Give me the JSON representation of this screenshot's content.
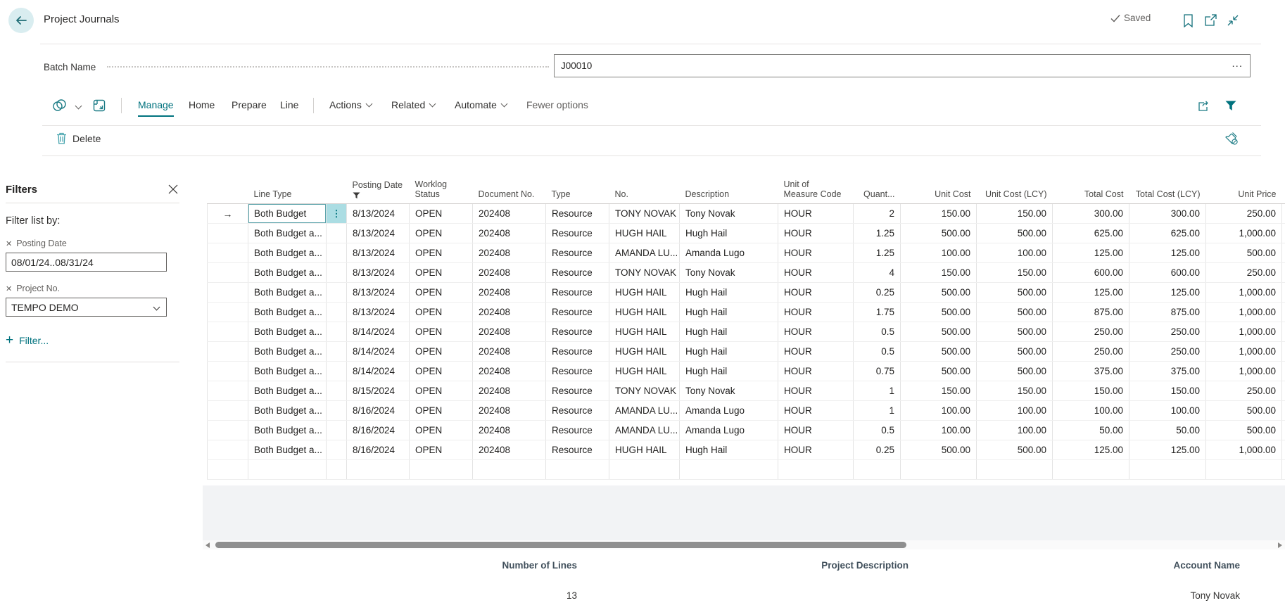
{
  "header": {
    "title": "Project Journals",
    "saved_label": "Saved"
  },
  "batch": {
    "label": "Batch Name",
    "value": "J00010",
    "ellipsis": "..."
  },
  "ribbon": {
    "menu": [
      {
        "label": "Manage",
        "active": true
      },
      {
        "label": "Home"
      },
      {
        "label": "Prepare"
      },
      {
        "label": "Line"
      },
      {
        "label": "Actions",
        "chevron": true
      },
      {
        "label": "Related",
        "chevron": true
      },
      {
        "label": "Automate",
        "chevron": true
      },
      {
        "label": "Fewer options",
        "muted": true
      }
    ]
  },
  "action_bar": {
    "delete_label": "Delete"
  },
  "filters": {
    "title": "Filters",
    "subtitle": "Filter list by:",
    "items": [
      {
        "label": "Posting Date",
        "value": "08/01/24..08/31/24",
        "type": "input"
      },
      {
        "label": "Project No.",
        "value": "TEMPO DEMO",
        "type": "dropdown"
      }
    ],
    "add_label": "Filter..."
  },
  "table": {
    "columns": [
      {
        "key": "selector",
        "label": ""
      },
      {
        "key": "line_type",
        "label": "Line Type"
      },
      {
        "key": "row_menu",
        "label": ""
      },
      {
        "key": "posting_date",
        "label": "Posting Date",
        "filtered": true
      },
      {
        "key": "worklog_status",
        "label": "Worklog\nStatus"
      },
      {
        "key": "document_no",
        "label": "Document No."
      },
      {
        "key": "type",
        "label": "Type"
      },
      {
        "key": "no",
        "label": "No."
      },
      {
        "key": "description",
        "label": "Description"
      },
      {
        "key": "unit_of_measure_code",
        "label": "Unit of\nMeasure Code"
      },
      {
        "key": "quantity",
        "label": "Quant...",
        "align": "right"
      },
      {
        "key": "unit_cost",
        "label": "Unit Cost",
        "align": "right"
      },
      {
        "key": "unit_cost_lcy",
        "label": "Unit Cost (LCY)",
        "align": "right"
      },
      {
        "key": "total_cost",
        "label": "Total Cost",
        "align": "right"
      },
      {
        "key": "total_cost_lcy",
        "label": "Total Cost (LCY)",
        "align": "right"
      },
      {
        "key": "unit_price",
        "label": "Unit Price",
        "align": "right"
      }
    ],
    "rows": [
      {
        "selected": true,
        "cells": [
          "Both Budget",
          "8/13/2024",
          "OPEN",
          "202408",
          "Resource",
          "TONY NOVAK",
          "Tony Novak",
          "HOUR",
          "2",
          "150.00",
          "150.00",
          "300.00",
          "300.00",
          "250.00"
        ]
      },
      {
        "cells": [
          "Both Budget a...",
          "8/13/2024",
          "OPEN",
          "202408",
          "Resource",
          "HUGH HAIL",
          "Hugh Hail",
          "HOUR",
          "1.25",
          "500.00",
          "500.00",
          "625.00",
          "625.00",
          "1,000.00"
        ]
      },
      {
        "cells": [
          "Both Budget a...",
          "8/13/2024",
          "OPEN",
          "202408",
          "Resource",
          "AMANDA LU...",
          "Amanda Lugo",
          "HOUR",
          "1.25",
          "100.00",
          "100.00",
          "125.00",
          "125.00",
          "500.00"
        ]
      },
      {
        "cells": [
          "Both Budget a...",
          "8/13/2024",
          "OPEN",
          "202408",
          "Resource",
          "TONY NOVAK",
          "Tony Novak",
          "HOUR",
          "4",
          "150.00",
          "150.00",
          "600.00",
          "600.00",
          "250.00"
        ]
      },
      {
        "cells": [
          "Both Budget a...",
          "8/13/2024",
          "OPEN",
          "202408",
          "Resource",
          "HUGH HAIL",
          "Hugh Hail",
          "HOUR",
          "0.25",
          "500.00",
          "500.00",
          "125.00",
          "125.00",
          "1,000.00"
        ]
      },
      {
        "cells": [
          "Both Budget a...",
          "8/13/2024",
          "OPEN",
          "202408",
          "Resource",
          "HUGH HAIL",
          "Hugh Hail",
          "HOUR",
          "1.75",
          "500.00",
          "500.00",
          "875.00",
          "875.00",
          "1,000.00"
        ]
      },
      {
        "cells": [
          "Both Budget a...",
          "8/14/2024",
          "OPEN",
          "202408",
          "Resource",
          "HUGH HAIL",
          "Hugh Hail",
          "HOUR",
          "0.5",
          "500.00",
          "500.00",
          "250.00",
          "250.00",
          "1,000.00"
        ]
      },
      {
        "cells": [
          "Both Budget a...",
          "8/14/2024",
          "OPEN",
          "202408",
          "Resource",
          "HUGH HAIL",
          "Hugh Hail",
          "HOUR",
          "0.5",
          "500.00",
          "500.00",
          "250.00",
          "250.00",
          "1,000.00"
        ]
      },
      {
        "cells": [
          "Both Budget a...",
          "8/14/2024",
          "OPEN",
          "202408",
          "Resource",
          "HUGH HAIL",
          "Hugh Hail",
          "HOUR",
          "0.75",
          "500.00",
          "500.00",
          "375.00",
          "375.00",
          "1,000.00"
        ]
      },
      {
        "cells": [
          "Both Budget a...",
          "8/15/2024",
          "OPEN",
          "202408",
          "Resource",
          "TONY NOVAK",
          "Tony Novak",
          "HOUR",
          "1",
          "150.00",
          "150.00",
          "150.00",
          "150.00",
          "250.00"
        ]
      },
      {
        "cells": [
          "Both Budget a...",
          "8/16/2024",
          "OPEN",
          "202408",
          "Resource",
          "AMANDA LU...",
          "Amanda Lugo",
          "HOUR",
          "1",
          "100.00",
          "100.00",
          "100.00",
          "100.00",
          "500.00"
        ]
      },
      {
        "cells": [
          "Both Budget a...",
          "8/16/2024",
          "OPEN",
          "202408",
          "Resource",
          "AMANDA LU...",
          "Amanda Lugo",
          "HOUR",
          "0.5",
          "100.00",
          "100.00",
          "50.00",
          "50.00",
          "500.00"
        ]
      },
      {
        "cells": [
          "Both Budget a...",
          "8/16/2024",
          "OPEN",
          "202408",
          "Resource",
          "HUGH HAIL",
          "Hugh Hail",
          "HOUR",
          "0.25",
          "500.00",
          "500.00",
          "125.00",
          "125.00",
          "1,000.00"
        ]
      }
    ],
    "has_trailing_empty_row": true
  },
  "footer": {
    "number_of_lines_label": "Number of Lines",
    "number_of_lines_value": "13",
    "project_description_label": "Project Description",
    "project_description_value": "",
    "account_name_label": "Account Name",
    "account_name_value": "Tony Novak"
  },
  "colors": {
    "accent": "#00727e",
    "accent_icon": "#1b7b85",
    "selection_bg": "#abdde3",
    "back_circle_bg": "#d9edf0",
    "gray_area": "#f2f3f5",
    "scroll_thumb": "#8f8f8f",
    "muted_text": "#605e5c"
  }
}
